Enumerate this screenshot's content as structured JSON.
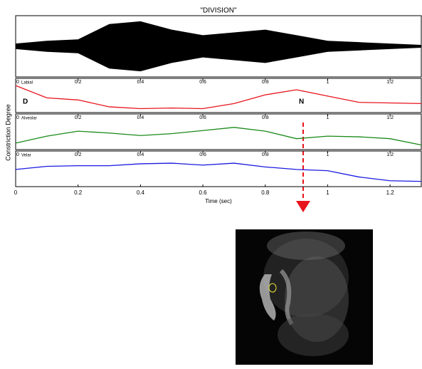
{
  "figure": {
    "title": "\"DIVISION\"",
    "x_label": "Time (sec)",
    "y_label": "Constriction Degree",
    "xlim": [
      0,
      1.3
    ],
    "xticks": [
      0,
      0.2,
      0.4,
      0.6,
      0.8,
      1,
      1.2
    ]
  },
  "chart_data": [
    {
      "type": "envelope",
      "x": [
        0,
        0.1,
        0.2,
        0.3,
        0.4,
        0.5,
        0.6,
        0.7,
        0.8,
        0.9,
        1.0,
        1.1,
        1.2,
        1.3
      ],
      "values": [
        0.1,
        0.2,
        0.25,
        0.8,
        0.9,
        0.6,
        0.4,
        0.5,
        0.6,
        0.4,
        0.2,
        0.15,
        0.1,
        0.05
      ],
      "color": "#000000",
      "ylim": [
        0,
        1
      ]
    },
    {
      "type": "line",
      "label": "Labial",
      "annotations": [
        "D",
        "N"
      ],
      "color": "#e8141c",
      "ylim": [
        0,
        1
      ],
      "xticks": [
        0,
        {
          "value": 0.2,
          "label": "0!2"
        },
        {
          "value": 0.4,
          "label": "0!4"
        },
        {
          "value": 0.6,
          "label": "0!6"
        },
        {
          "value": 0.8,
          "label": "0!8"
        },
        1,
        {
          "value": 1.2,
          "label": "1!2"
        }
      ],
      "x": [
        0,
        0.1,
        0.2,
        0.3,
        0.4,
        0.5,
        0.6,
        0.7,
        0.8,
        0.9,
        1.0,
        1.1,
        1.2,
        1.3
      ],
      "values": [
        0.83,
        0.42,
        0.35,
        0.12,
        0.06,
        0.08,
        0.06,
        0.23,
        0.52,
        0.69,
        0.48,
        0.27,
        0.25,
        0.23
      ]
    },
    {
      "type": "line",
      "label": "Alveolar",
      "color": "#1a8a1a",
      "ylim": [
        0,
        1
      ],
      "xticks": [
        0,
        {
          "value": 0.2,
          "label": "0!2"
        },
        {
          "value": 0.4,
          "label": "0!4"
        },
        {
          "value": 0.6,
          "label": "0!6"
        },
        {
          "value": 0.8,
          "label": "0!8"
        },
        1,
        {
          "value": 1.2,
          "label": "1!2"
        }
      ],
      "x": [
        0,
        0.1,
        0.2,
        0.3,
        0.4,
        0.5,
        0.6,
        0.7,
        0.8,
        0.9,
        1.0,
        1.1,
        1.2,
        1.3
      ],
      "values": [
        0.14,
        0.36,
        0.52,
        0.46,
        0.38,
        0.44,
        0.54,
        0.64,
        0.52,
        0.28,
        0.36,
        0.34,
        0.28,
        0.08
      ]
    },
    {
      "type": "line",
      "label": "Velar",
      "color": "#1a1ae0",
      "ylim": [
        0,
        1
      ],
      "xticks": [
        0,
        {
          "value": 0.2,
          "label": "0!2"
        },
        {
          "value": 0.4,
          "label": "0!4"
        },
        {
          "value": 0.6,
          "label": "0!6"
        },
        {
          "value": 0.8,
          "label": "0!8"
        },
        1,
        {
          "value": 1.2,
          "label": "1!2"
        }
      ],
      "x": [
        0,
        0.1,
        0.2,
        0.3,
        0.4,
        0.5,
        0.6,
        0.7,
        0.8,
        0.9,
        1.0,
        1.1,
        1.2,
        1.3
      ],
      "values": [
        0.48,
        0.58,
        0.6,
        0.6,
        0.66,
        0.68,
        0.62,
        0.68,
        0.56,
        0.48,
        0.44,
        0.24,
        0.12,
        0.1
      ]
    }
  ]
}
